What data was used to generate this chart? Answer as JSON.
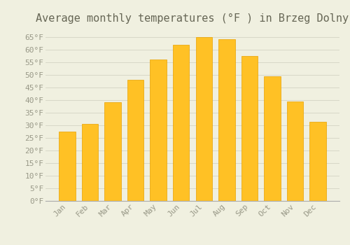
{
  "title": "Average monthly temperatures (°F ) in Brzeg Dolny",
  "months": [
    "Jan",
    "Feb",
    "Mar",
    "Apr",
    "May",
    "Jun",
    "Jul",
    "Aug",
    "Sep",
    "Oct",
    "Nov",
    "Dec"
  ],
  "values": [
    27.5,
    30.5,
    39.0,
    48.0,
    56.0,
    62.0,
    65.0,
    64.0,
    57.5,
    49.5,
    39.5,
    31.5
  ],
  "bar_color": "#FFC125",
  "bar_edge_color": "#E8A000",
  "background_color": "#F0F0E0",
  "grid_color": "#D8D8C8",
  "ylim": [
    0,
    68
  ],
  "yticks": [
    0,
    5,
    10,
    15,
    20,
    25,
    30,
    35,
    40,
    45,
    50,
    55,
    60,
    65
  ],
  "ytick_labels": [
    "0°F",
    "5°F",
    "10°F",
    "15°F",
    "20°F",
    "25°F",
    "30°F",
    "35°F",
    "40°F",
    "45°F",
    "50°F",
    "55°F",
    "60°F",
    "65°F"
  ],
  "title_fontsize": 11,
  "tick_fontsize": 8,
  "tick_font_color": "#999988",
  "title_color": "#666655"
}
